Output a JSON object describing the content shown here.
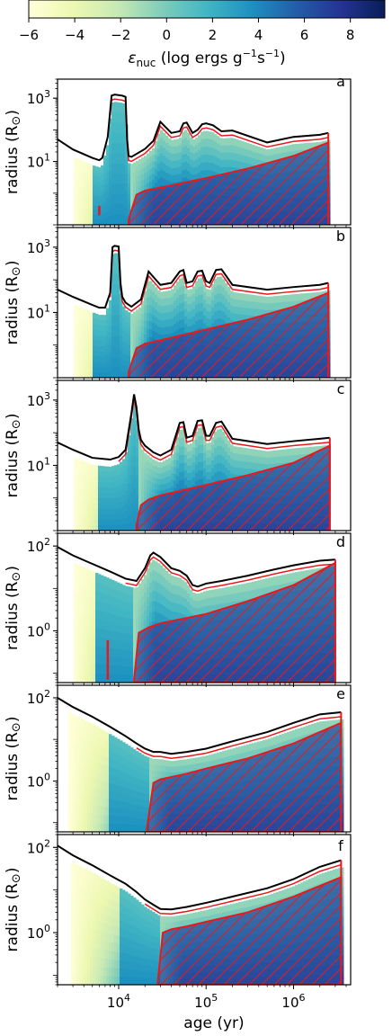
{
  "colors": {
    "total_radius_line": "#000000",
    "convective_boundary_line": "#e8191c",
    "hatch": "#e8191c",
    "colormap": [
      "#ffffd9",
      "#edf8b1",
      "#c7e9b4",
      "#7fcdbb",
      "#41b6c4",
      "#1d91c0",
      "#225ea8",
      "#253494",
      "#081d58"
    ]
  },
  "colorbar": {
    "label": "ε",
    "label_sub": "nuc",
    "label_rest": " (log ergs g",
    "label_sup1": "−1",
    "label_mid": "s",
    "label_sup2": "−1",
    "label_end": ")",
    "range": [
      -6,
      9.5
    ],
    "ticks": [
      "−6",
      "−4",
      "−2",
      "0",
      "2",
      "4",
      "6",
      "8"
    ],
    "tick_values": [
      -6,
      -4,
      -2,
      0,
      2,
      4,
      6,
      8
    ]
  },
  "x_axis": {
    "label": "age (yr)",
    "scale": "log",
    "range": [
      2000,
      4500000
    ],
    "ticks": [
      {
        "value": 10000,
        "base": "10",
        "exp": "4"
      },
      {
        "value": 100000,
        "base": "10",
        "exp": "5"
      },
      {
        "value": 1000000,
        "base": "10",
        "exp": "6"
      }
    ]
  },
  "y_axis_label": {
    "text": "radius (R",
    "symbol": "⊙",
    "close": ")"
  },
  "chart_data": [
    {
      "type": "area",
      "panel": "a",
      "yscale": "log",
      "ylim": [
        0.1,
        4000
      ],
      "yticks": [
        {
          "value": 1000,
          "base": "10",
          "exp": "3"
        },
        {
          "value": 10,
          "base": "10",
          "exp": "1"
        }
      ],
      "radius_track": {
        "x": [
          2000,
          3000,
          5000,
          6000,
          6500,
          7500,
          8000,
          8300,
          9000,
          11000,
          12000,
          12500,
          13000,
          14000,
          20000,
          25000,
          30000,
          40000,
          50000,
          55000,
          60000,
          70000,
          80000,
          90000,
          100000,
          120000,
          150000,
          200000,
          500000,
          1000000,
          2000000,
          2500000
        ],
        "y": [
          50,
          24,
          13,
          11,
          13,
          60,
          400,
          1200,
          1300,
          1200,
          1100,
          50,
          15,
          14,
          25,
          45,
          180,
          80,
          90,
          160,
          170,
          80,
          100,
          150,
          160,
          140,
          90,
          95,
          40,
          60,
          70,
          80
        ]
      },
      "convective_core": {
        "onset": 13000,
        "x": [
          13000,
          16000,
          20000,
          30000,
          100000,
          300000,
          1000000,
          2500000
        ],
        "y": [
          0.15,
          0.9,
          1.2,
          1.5,
          3,
          6,
          15,
          40
        ]
      },
      "shell_convection": {
        "x": 6000,
        "y": [
          0.2,
          0.4
        ]
      },
      "burning": {
        "start": 3000,
        "core_ramp": 14000,
        "max_eps": 7.8
      }
    },
    {
      "type": "area",
      "panel": "b",
      "yscale": "log",
      "ylim": [
        0.1,
        4000
      ],
      "yticks": [
        {
          "value": 1000,
          "base": "10",
          "exp": "3"
        },
        {
          "value": 10,
          "base": "10",
          "exp": "1"
        }
      ],
      "radius_track": {
        "x": [
          2000,
          3000,
          5000,
          6000,
          7000,
          8000,
          8500,
          9000,
          10000,
          10500,
          11000,
          12000,
          14000,
          18000,
          22000,
          30000,
          40000,
          50000,
          55000,
          60000,
          70000,
          80000,
          90000,
          100000,
          110000,
          130000,
          150000,
          200000,
          500000,
          1000000,
          2000000,
          2500000
        ],
        "y": [
          50,
          30,
          17,
          14,
          14,
          40,
          1000,
          1100,
          1050,
          80,
          30,
          20,
          15,
          25,
          180,
          70,
          80,
          180,
          200,
          80,
          90,
          180,
          190,
          90,
          80,
          200,
          210,
          70,
          50,
          60,
          70,
          80
        ]
      },
      "convective_core": {
        "onset": 13000,
        "x": [
          13000,
          16000,
          20000,
          30000,
          100000,
          300000,
          1000000,
          2500000
        ],
        "y": [
          0.15,
          0.8,
          1.1,
          1.4,
          3,
          6,
          15,
          40
        ]
      },
      "burning": {
        "start": 3000,
        "core_ramp": 14000,
        "max_eps": 7.8
      }
    },
    {
      "type": "area",
      "panel": "c",
      "yscale": "log",
      "ylim": [
        0.1,
        4000
      ],
      "yticks": [
        {
          "value": 1000,
          "base": "10",
          "exp": "3"
        },
        {
          "value": 10,
          "base": "10",
          "exp": "1"
        }
      ],
      "radius_track": {
        "x": [
          2000,
          3000,
          5000,
          8000,
          10000,
          12000,
          14000,
          15000,
          16000,
          17000,
          18000,
          20000,
          25000,
          30000,
          40000,
          50000,
          55000,
          60000,
          70000,
          80000,
          90000,
          100000,
          110000,
          130000,
          150000,
          200000,
          500000,
          1000000,
          2000000,
          2600000
        ],
        "y": [
          50,
          30,
          17,
          15,
          18,
          30,
          400,
          1500,
          600,
          120,
          60,
          40,
          25,
          20,
          30,
          200,
          210,
          70,
          80,
          230,
          240,
          80,
          80,
          200,
          220,
          65,
          45,
          55,
          65,
          70
        ]
      },
      "convective_core": {
        "onset": 16000,
        "x": [
          16000,
          18000,
          22000,
          30000,
          100000,
          300000,
          1000000,
          2600000
        ],
        "y": [
          0.15,
          0.6,
          0.9,
          1.2,
          2.5,
          5,
          12,
          40
        ]
      },
      "burning": {
        "start": 3000,
        "core_ramp": 17000,
        "max_eps": 7.8
      }
    },
    {
      "type": "area",
      "panel": "d",
      "yscale": "log",
      "ylim": [
        0.06,
        200
      ],
      "yticks": [
        {
          "value": 100,
          "base": "10",
          "exp": "2"
        },
        {
          "value": 1,
          "base": "10",
          "exp": "0"
        }
      ],
      "radius_track": {
        "x": [
          2000,
          3000,
          5000,
          8000,
          12000,
          16000,
          20000,
          23000,
          25000,
          30000,
          40000,
          50000,
          60000,
          70000,
          80000,
          100000,
          150000,
          300000,
          600000,
          1000000,
          2000000,
          3000000
        ],
        "y": [
          95,
          60,
          38,
          25,
          17,
          15,
          30,
          60,
          70,
          55,
          30,
          26,
          20,
          12,
          11,
          13,
          15,
          20,
          28,
          35,
          45,
          48
        ]
      },
      "convective_core": {
        "onset": 15000,
        "x": [
          15000,
          17000,
          22000,
          30000,
          100000,
          300000,
          1000000,
          3000000
        ],
        "y": [
          0.07,
          0.9,
          1.2,
          1.5,
          2.5,
          5,
          12,
          40
        ]
      },
      "shell_convection": {
        "x": 7500,
        "y": [
          0.07,
          0.6
        ]
      },
      "burning": {
        "start": 3000,
        "core_ramp": 15000,
        "max_eps": 7.6
      }
    },
    {
      "type": "area",
      "panel": "e",
      "yscale": "log",
      "ylim": [
        0.06,
        200
      ],
      "yticks": [
        {
          "value": 100,
          "base": "10",
          "exp": "2"
        },
        {
          "value": 1,
          "base": "10",
          "exp": "0"
        }
      ],
      "radius_track": {
        "x": [
          2000,
          3000,
          5000,
          8000,
          12000,
          16000,
          20000,
          25000,
          30000,
          40000,
          60000,
          100000,
          200000,
          500000,
          1000000,
          2000000,
          3500000
        ],
        "y": [
          100,
          60,
          35,
          20,
          12,
          8,
          6,
          5,
          5,
          4.5,
          5,
          6,
          9,
          15,
          25,
          40,
          45
        ]
      },
      "convective_core": {
        "onset": 21000,
        "x": [
          21000,
          25000,
          30000,
          60000,
          100000,
          300000,
          1000000,
          3500000
        ],
        "y": [
          0.07,
          0.9,
          1.1,
          1.5,
          2,
          3.5,
          8,
          25
        ]
      },
      "burning": {
        "start": 2700,
        "core_ramp": 22000,
        "max_eps": 7.6
      }
    },
    {
      "type": "area",
      "panel": "f",
      "yscale": "log",
      "ylim": [
        0.06,
        200
      ],
      "yticks": [
        {
          "value": 100,
          "base": "10",
          "exp": "2"
        },
        {
          "value": 1,
          "base": "10",
          "exp": "0"
        }
      ],
      "radius_track": {
        "x": [
          2000,
          3000,
          5000,
          8000,
          12000,
          16000,
          20000,
          25000,
          30000,
          40000,
          60000,
          100000,
          200000,
          500000,
          1000000,
          2000000,
          3500000
        ],
        "y": [
          110,
          65,
          38,
          22,
          14,
          9,
          6,
          4.5,
          3.6,
          3.5,
          4,
          5,
          7,
          11,
          18,
          35,
          50
        ]
      },
      "convective_core": {
        "onset": 28000,
        "x": [
          28000,
          32000,
          40000,
          60000,
          100000,
          300000,
          1000000,
          3500000
        ],
        "y": [
          0.07,
          1.0,
          1.2,
          1.4,
          1.8,
          3,
          7,
          20
        ]
      },
      "burning": {
        "start": 2800,
        "core_ramp": 30000,
        "max_eps": 7.6
      }
    }
  ]
}
